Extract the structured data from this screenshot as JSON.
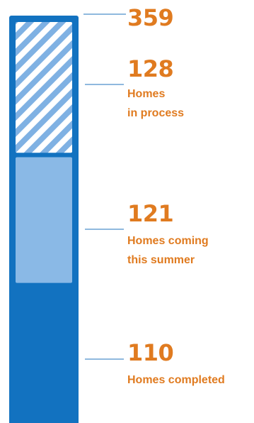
{
  "chart_data": {
    "type": "bar",
    "orientation": "vertical-stacked",
    "total": 359,
    "total_label": "359",
    "segments": [
      {
        "name": "Homes completed",
        "value": 110,
        "value_label": "110",
        "label_lines": [
          "Homes completed"
        ],
        "fill": "solid",
        "color": "#1272c0"
      },
      {
        "name": "Homes coming this summer",
        "value": 121,
        "value_label": "121",
        "label_lines": [
          "Homes coming",
          "this summer"
        ],
        "fill": "light",
        "color": "#8ab9e6"
      },
      {
        "name": "Homes in process",
        "value": 128,
        "value_label": "128",
        "label_lines": [
          "Homes",
          "in process"
        ],
        "fill": "hatched",
        "color": "#7fb1e3"
      }
    ],
    "title": "",
    "xlabel": "",
    "ylabel": "",
    "grid": false,
    "legend": "none"
  },
  "colors": {
    "bar_outline": "#1272c0",
    "label_text": "#e07b20",
    "leader_line": "#8fb9de",
    "hatch_stripe": "#7fb1e3"
  }
}
